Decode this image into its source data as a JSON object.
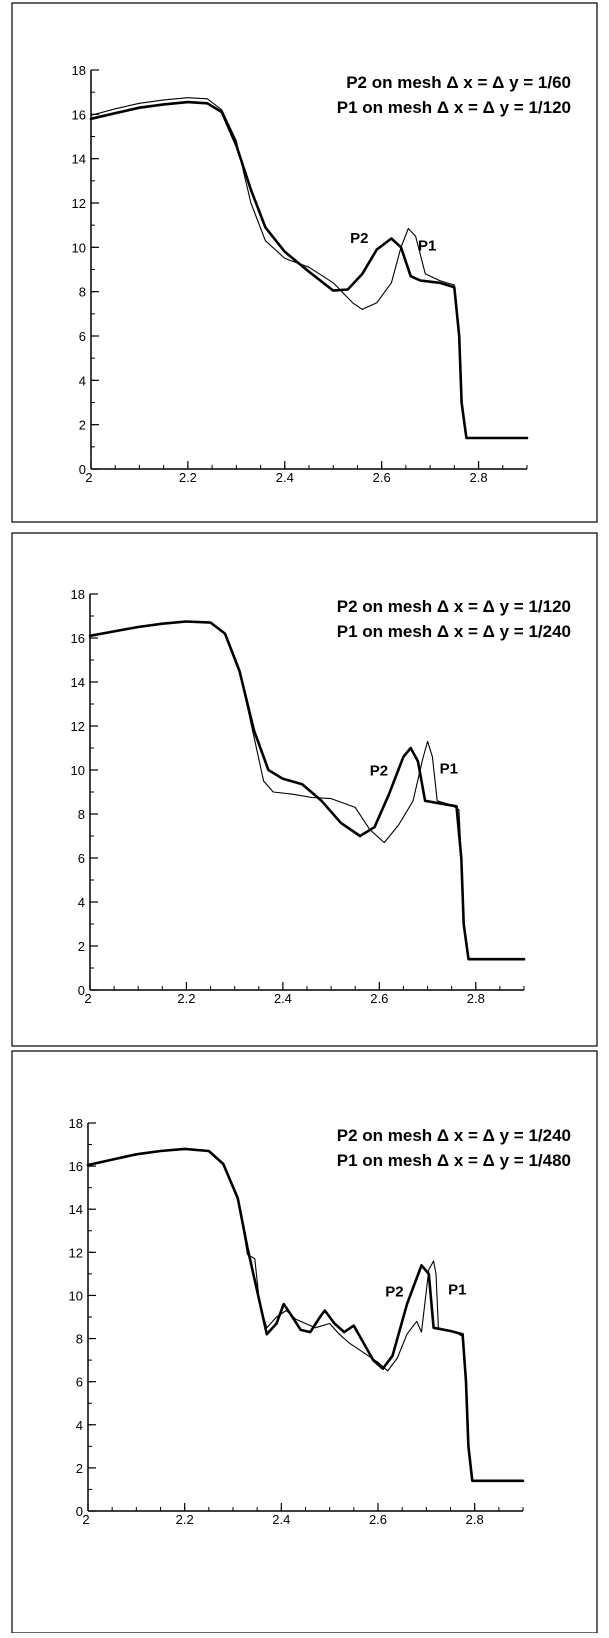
{
  "chart_data": [
    {
      "type": "line",
      "xlim": [
        2,
        2.9
      ],
      "ylim": [
        0,
        18
      ],
      "xticks": [
        "2",
        "2.2",
        "2.4",
        "2.6",
        "2.8"
      ],
      "yticks": [
        "0",
        "2",
        "4",
        "6",
        "8",
        "10",
        "12",
        "14",
        "16",
        "18"
      ],
      "legend": [
        "P2 on mesh  Δ x = Δ y = 1/60",
        "P1 on mesh  Δ x = Δ y = 1/120"
      ],
      "series": [
        {
          "name": "P2",
          "style": "thick",
          "points": [
            [
              2.0,
              15.8
            ],
            [
              2.05,
              16.05
            ],
            [
              2.1,
              16.3
            ],
            [
              2.15,
              16.45
            ],
            [
              2.2,
              16.55
            ],
            [
              2.24,
              16.5
            ],
            [
              2.27,
              16.1
            ],
            [
              2.3,
              14.6
            ],
            [
              2.33,
              12.6
            ],
            [
              2.36,
              10.9
            ],
            [
              2.4,
              9.8
            ],
            [
              2.45,
              8.9
            ],
            [
              2.5,
              8.05
            ],
            [
              2.53,
              8.1
            ],
            [
              2.56,
              8.8
            ],
            [
              2.59,
              9.9
            ],
            [
              2.62,
              10.4
            ],
            [
              2.64,
              10.0
            ],
            [
              2.66,
              8.7
            ],
            [
              2.68,
              8.5
            ],
            [
              2.72,
              8.4
            ],
            [
              2.75,
              8.2
            ],
            [
              2.76,
              6.0
            ],
            [
              2.765,
              3.0
            ],
            [
              2.775,
              1.4
            ],
            [
              2.9,
              1.4
            ]
          ]
        },
        {
          "name": "P1",
          "style": "thin",
          "points": [
            [
              2.0,
              15.95
            ],
            [
              2.05,
              16.25
            ],
            [
              2.1,
              16.5
            ],
            [
              2.15,
              16.65
            ],
            [
              2.2,
              16.75
            ],
            [
              2.24,
              16.7
            ],
            [
              2.27,
              16.2
            ],
            [
              2.3,
              14.8
            ],
            [
              2.33,
              12.0
            ],
            [
              2.36,
              10.3
            ],
            [
              2.4,
              9.5
            ],
            [
              2.45,
              9.1
            ],
            [
              2.5,
              8.4
            ],
            [
              2.54,
              7.5
            ],
            [
              2.56,
              7.2
            ],
            [
              2.59,
              7.5
            ],
            [
              2.62,
              8.4
            ],
            [
              2.64,
              10.0
            ],
            [
              2.655,
              10.85
            ],
            [
              2.67,
              10.5
            ],
            [
              2.69,
              8.8
            ],
            [
              2.72,
              8.5
            ],
            [
              2.75,
              8.3
            ],
            [
              2.76,
              6.0
            ],
            [
              2.765,
              3.0
            ],
            [
              2.775,
              1.4
            ],
            [
              2.9,
              1.4
            ]
          ]
        }
      ],
      "curve_labels": [
        {
          "text": "P2",
          "x": 2.535,
          "y": 10.2
        },
        {
          "text": "P1",
          "x": 2.675,
          "y": 9.85
        }
      ]
    },
    {
      "type": "line",
      "xlim": [
        2,
        2.9
      ],
      "ylim": [
        0,
        18
      ],
      "xticks": [
        "2",
        "2.2",
        "2.4",
        "2.6",
        "2.8"
      ],
      "yticks": [
        "0",
        "2",
        "4",
        "6",
        "8",
        "10",
        "12",
        "14",
        "16",
        "18"
      ],
      "legend": [
        "P2 on mesh  Δ x = Δ y = 1/120",
        "P1 on mesh  Δ x = Δ y = 1/240"
      ],
      "series": [
        {
          "name": "P2",
          "style": "thick",
          "points": [
            [
              2.0,
              16.1
            ],
            [
              2.05,
              16.3
            ],
            [
              2.1,
              16.5
            ],
            [
              2.15,
              16.65
            ],
            [
              2.2,
              16.75
            ],
            [
              2.25,
              16.7
            ],
            [
              2.28,
              16.2
            ],
            [
              2.31,
              14.5
            ],
            [
              2.34,
              11.8
            ],
            [
              2.37,
              10.0
            ],
            [
              2.4,
              9.6
            ],
            [
              2.44,
              9.35
            ],
            [
              2.48,
              8.6
            ],
            [
              2.52,
              7.6
            ],
            [
              2.56,
              7.0
            ],
            [
              2.59,
              7.4
            ],
            [
              2.62,
              8.9
            ],
            [
              2.65,
              10.6
            ],
            [
              2.665,
              11.0
            ],
            [
              2.68,
              10.4
            ],
            [
              2.695,
              8.6
            ],
            [
              2.72,
              8.5
            ],
            [
              2.76,
              8.35
            ],
            [
              2.77,
              6.0
            ],
            [
              2.775,
              3.0
            ],
            [
              2.785,
              1.4
            ],
            [
              2.9,
              1.4
            ]
          ]
        },
        {
          "name": "P1",
          "style": "thin",
          "points": [
            [
              2.0,
              16.1
            ],
            [
              2.05,
              16.3
            ],
            [
              2.1,
              16.5
            ],
            [
              2.15,
              16.65
            ],
            [
              2.2,
              16.75
            ],
            [
              2.25,
              16.7
            ],
            [
              2.28,
              16.2
            ],
            [
              2.31,
              14.5
            ],
            [
              2.34,
              11.5
            ],
            [
              2.36,
              9.5
            ],
            [
              2.38,
              9.0
            ],
            [
              2.42,
              8.9
            ],
            [
              2.46,
              8.75
            ],
            [
              2.5,
              8.7
            ],
            [
              2.55,
              8.3
            ],
            [
              2.58,
              7.3
            ],
            [
              2.61,
              6.7
            ],
            [
              2.64,
              7.5
            ],
            [
              2.67,
              8.6
            ],
            [
              2.69,
              10.5
            ],
            [
              2.7,
              11.3
            ],
            [
              2.71,
              10.6
            ],
            [
              2.72,
              8.6
            ],
            [
              2.75,
              8.4
            ],
            [
              2.765,
              8.2
            ],
            [
              2.77,
              6.0
            ],
            [
              2.775,
              3.0
            ],
            [
              2.785,
              1.4
            ],
            [
              2.9,
              1.4
            ]
          ]
        }
      ],
      "curve_labels": [
        {
          "text": "P2",
          "x": 2.58,
          "y": 9.75
        },
        {
          "text": "P1",
          "x": 2.725,
          "y": 9.85
        }
      ]
    },
    {
      "type": "line",
      "xlim": [
        2,
        2.9
      ],
      "ylim": [
        0,
        18
      ],
      "xticks": [
        "2",
        "2.2",
        "2.4",
        "2.6",
        "2.8"
      ],
      "yticks": [
        "0",
        "2",
        "4",
        "6",
        "8",
        "10",
        "12",
        "14",
        "16",
        "18"
      ],
      "legend": [
        "P2 on mesh  Δ x = Δ y = 1/240",
        "P1 on mesh  Δ x = Δ y = 1/480"
      ],
      "series": [
        {
          "name": "P2",
          "style": "thick",
          "points": [
            [
              2.0,
              16.05
            ],
            [
              2.05,
              16.3
            ],
            [
              2.1,
              16.55
            ],
            [
              2.15,
              16.7
            ],
            [
              2.2,
              16.8
            ],
            [
              2.25,
              16.7
            ],
            [
              2.28,
              16.1
            ],
            [
              2.31,
              14.5
            ],
            [
              2.33,
              12.2
            ],
            [
              2.35,
              10.2
            ],
            [
              2.37,
              8.2
            ],
            [
              2.39,
              8.7
            ],
            [
              2.405,
              9.6
            ],
            [
              2.42,
              9.1
            ],
            [
              2.44,
              8.4
            ],
            [
              2.46,
              8.3
            ],
            [
              2.48,
              9.0
            ],
            [
              2.49,
              9.3
            ],
            [
              2.51,
              8.7
            ],
            [
              2.53,
              8.3
            ],
            [
              2.55,
              8.6
            ],
            [
              2.565,
              8.0
            ],
            [
              2.59,
              7.0
            ],
            [
              2.61,
              6.6
            ],
            [
              2.63,
              7.2
            ],
            [
              2.66,
              9.6
            ],
            [
              2.69,
              11.4
            ],
            [
              2.705,
              11.0
            ],
            [
              2.715,
              8.5
            ],
            [
              2.75,
              8.35
            ],
            [
              2.775,
              8.2
            ],
            [
              2.782,
              6.0
            ],
            [
              2.787,
              3.0
            ],
            [
              2.795,
              1.4
            ],
            [
              2.9,
              1.4
            ]
          ]
        },
        {
          "name": "P1",
          "style": "thin",
          "points": [
            [
              2.0,
              16.05
            ],
            [
              2.05,
              16.3
            ],
            [
              2.1,
              16.55
            ],
            [
              2.15,
              16.7
            ],
            [
              2.2,
              16.8
            ],
            [
              2.25,
              16.7
            ],
            [
              2.28,
              16.1
            ],
            [
              2.31,
              14.6
            ],
            [
              2.33,
              11.9
            ],
            [
              2.345,
              11.7
            ],
            [
              2.355,
              9.6
            ],
            [
              2.37,
              8.5
            ],
            [
              2.39,
              9.0
            ],
            [
              2.41,
              9.3
            ],
            [
              2.43,
              8.9
            ],
            [
              2.45,
              8.7
            ],
            [
              2.47,
              8.5
            ],
            [
              2.5,
              8.7
            ],
            [
              2.52,
              8.2
            ],
            [
              2.54,
              7.8
            ],
            [
              2.56,
              7.5
            ],
            [
              2.58,
              7.2
            ],
            [
              2.6,
              6.9
            ],
            [
              2.62,
              6.5
            ],
            [
              2.64,
              7.1
            ],
            [
              2.66,
              8.2
            ],
            [
              2.68,
              8.8
            ],
            [
              2.69,
              8.3
            ],
            [
              2.705,
              11.2
            ],
            [
              2.715,
              11.6
            ],
            [
              2.72,
              11.0
            ],
            [
              2.725,
              8.5
            ],
            [
              2.76,
              8.3
            ],
            [
              2.775,
              8.1
            ],
            [
              2.782,
              6.0
            ],
            [
              2.787,
              3.0
            ],
            [
              2.795,
              1.4
            ],
            [
              2.9,
              1.4
            ]
          ]
        }
      ],
      "curve_labels": [
        {
          "text": "P2",
          "x": 2.615,
          "y": 9.95
        },
        {
          "text": "P1",
          "x": 2.745,
          "y": 10.05
        }
      ]
    }
  ]
}
